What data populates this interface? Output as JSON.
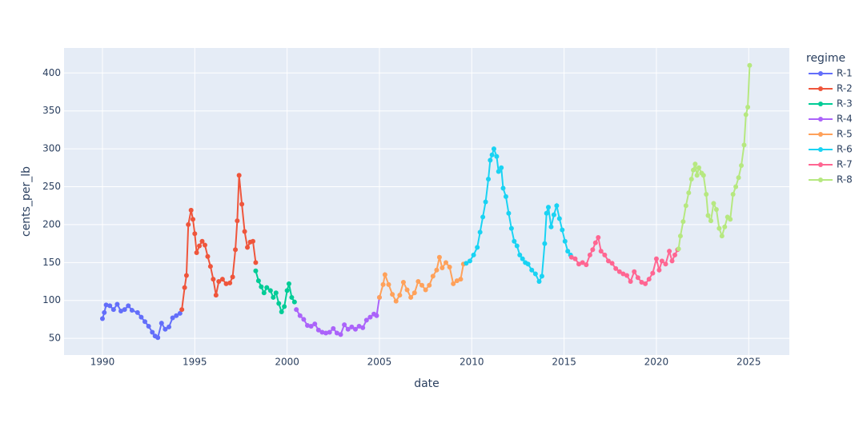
{
  "chart_data": {
    "type": "line",
    "x_label": "date",
    "y_label": "cents_per_lb",
    "legend_title": "regime",
    "legend_position": "right",
    "grid": true,
    "markers": true,
    "xlim": [
      1987.92,
      2027.2
    ],
    "xticks": [
      1990,
      1995,
      2000,
      2005,
      2010,
      2015,
      2020,
      2025
    ],
    "ylim": [
      28,
      433
    ],
    "yticks": [
      50,
      100,
      150,
      200,
      250,
      300,
      350,
      400
    ],
    "series": [
      {
        "name": "R-1",
        "color": "#636efa",
        "x": [
          1990.0,
          1990.1,
          1990.2,
          1990.4,
          1990.6,
          1990.8,
          1991.0,
          1991.2,
          1991.4,
          1991.6,
          1991.9,
          1992.1,
          1992.3,
          1992.5,
          1992.7,
          1992.85,
          1993.0,
          1993.2,
          1993.4,
          1993.6,
          1993.8,
          1994.0,
          1994.2
        ],
        "values": [
          76,
          84,
          94,
          93,
          88,
          95,
          86,
          88,
          93,
          87,
          84,
          78,
          72,
          66,
          58,
          53,
          51,
          70,
          62,
          65,
          77,
          80,
          83
        ]
      },
      {
        "name": "R-2",
        "color": "#EF553B",
        "x": [
          1994.3,
          1994.45,
          1994.55,
          1994.65,
          1994.8,
          1994.9,
          1995.0,
          1995.1,
          1995.25,
          1995.4,
          1995.55,
          1995.7,
          1995.85,
          1996.0,
          1996.15,
          1996.3,
          1996.5,
          1996.7,
          1996.9,
          1997.05,
          1997.2,
          1997.3,
          1997.4,
          1997.55,
          1997.7,
          1997.85,
          1998.0,
          1998.15,
          1998.3
        ],
        "values": [
          88,
          117,
          133,
          200,
          219,
          207,
          188,
          163,
          172,
          178,
          173,
          158,
          145,
          128,
          107,
          125,
          128,
          122,
          123,
          131,
          167,
          205,
          265,
          227,
          191,
          170,
          177,
          178,
          150
        ]
      },
      {
        "name": "R-3",
        "color": "#00cc96",
        "x": [
          1998.3,
          1998.45,
          1998.6,
          1998.75,
          1998.9,
          1999.1,
          1999.25,
          1999.4,
          1999.55,
          1999.7,
          1999.85,
          2000.0,
          2000.1,
          2000.25,
          2000.4
        ],
        "values": [
          139,
          126,
          118,
          110,
          117,
          113,
          104,
          110,
          96,
          85,
          92,
          113,
          122,
          104,
          98
        ]
      },
      {
        "name": "R-4",
        "color": "#ab63fa",
        "x": [
          2000.5,
          2000.7,
          2000.9,
          2001.1,
          2001.3,
          2001.5,
          2001.7,
          2001.9,
          2002.1,
          2002.3,
          2002.5,
          2002.7,
          2002.9,
          2003.1,
          2003.3,
          2003.5,
          2003.7,
          2003.9,
          2004.1,
          2004.3,
          2004.5,
          2004.7,
          2004.85,
          2005.0
        ],
        "values": [
          88,
          80,
          75,
          67,
          66,
          69,
          61,
          58,
          57,
          58,
          63,
          57,
          55,
          68,
          62,
          65,
          62,
          66,
          64,
          74,
          78,
          82,
          80,
          104
        ]
      },
      {
        "name": "R-5",
        "color": "#FFA15A",
        "x": [
          2005.0,
          2005.2,
          2005.3,
          2005.5,
          2005.7,
          2005.9,
          2006.1,
          2006.3,
          2006.5,
          2006.7,
          2006.9,
          2007.1,
          2007.3,
          2007.5,
          2007.7,
          2007.9,
          2008.1,
          2008.25,
          2008.4,
          2008.6,
          2008.8,
          2009.0,
          2009.2,
          2009.4,
          2009.55
        ],
        "values": [
          104,
          121,
          134,
          121,
          108,
          99,
          107,
          124,
          114,
          104,
          110,
          125,
          120,
          114,
          120,
          132,
          140,
          157,
          143,
          150,
          144,
          122,
          126,
          128,
          148
        ]
      },
      {
        "name": "R-6",
        "color": "#19d3f3",
        "x": [
          2009.7,
          2009.9,
          2010.1,
          2010.3,
          2010.45,
          2010.6,
          2010.75,
          2010.9,
          2011.0,
          2011.1,
          2011.2,
          2011.35,
          2011.45,
          2011.6,
          2011.7,
          2011.85,
          2012.0,
          2012.15,
          2012.3,
          2012.45,
          2012.6,
          2012.75,
          2012.9,
          2013.05,
          2013.25,
          2013.45,
          2013.65,
          2013.8,
          2013.95,
          2014.05,
          2014.15,
          2014.3,
          2014.45,
          2014.6,
          2014.75,
          2014.9,
          2015.05,
          2015.2,
          2015.35
        ],
        "values": [
          149,
          152,
          160,
          170,
          190,
          210,
          230,
          260,
          285,
          292,
          300,
          290,
          270,
          275,
          248,
          237,
          215,
          195,
          178,
          172,
          160,
          155,
          150,
          148,
          140,
          135,
          125,
          132,
          175,
          215,
          223,
          197,
          213,
          225,
          208,
          193,
          178,
          165,
          160
        ]
      },
      {
        "name": "R-7",
        "color": "#FF6692",
        "x": [
          2015.4,
          2015.6,
          2015.8,
          2016.0,
          2016.2,
          2016.4,
          2016.55,
          2016.7,
          2016.85,
          2017.0,
          2017.2,
          2017.4,
          2017.6,
          2017.8,
          2018.0,
          2018.2,
          2018.4,
          2018.6,
          2018.8,
          2019.0,
          2019.2,
          2019.4,
          2019.6,
          2019.8,
          2020.0,
          2020.15,
          2020.3,
          2020.5,
          2020.7,
          2020.85,
          2021.0,
          2021.15
        ],
        "values": [
          157,
          155,
          148,
          150,
          147,
          160,
          167,
          176,
          183,
          165,
          160,
          152,
          149,
          142,
          138,
          135,
          133,
          125,
          138,
          130,
          124,
          122,
          128,
          136,
          155,
          140,
          152,
          148,
          165,
          152,
          160,
          167
        ]
      },
      {
        "name": "R-8",
        "color": "#B6E880",
        "x": [
          2021.2,
          2021.3,
          2021.45,
          2021.6,
          2021.75,
          2021.9,
          2022.0,
          2022.1,
          2022.2,
          2022.3,
          2022.45,
          2022.55,
          2022.7,
          2022.8,
          2022.95,
          2023.1,
          2023.25,
          2023.4,
          2023.55,
          2023.7,
          2023.85,
          2024.0,
          2024.15,
          2024.3,
          2024.45,
          2024.6,
          2024.75,
          2024.85,
          2024.95,
          2025.05
        ],
        "values": [
          168,
          185,
          204,
          225,
          242,
          260,
          272,
          280,
          265,
          275,
          268,
          265,
          240,
          212,
          205,
          228,
          220,
          195,
          185,
          197,
          210,
          207,
          240,
          250,
          262,
          278,
          305,
          345,
          355,
          410
        ]
      }
    ]
  }
}
